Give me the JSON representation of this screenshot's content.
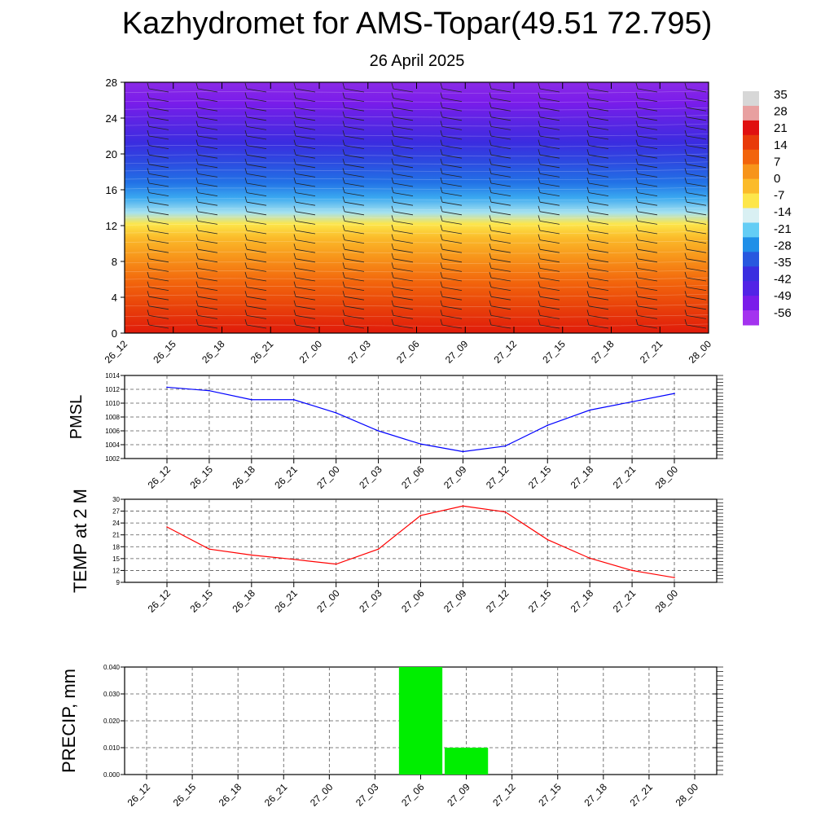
{
  "title": "Kazhydromet for AMS-Topar(49.51 72.795)",
  "subtitle": "26 April 2025",
  "chart_data": [
    {
      "type": "heatmap",
      "description_hidden": "",
      "x_ticks": [
        "26_12",
        "26_15",
        "26_18",
        "26_21",
        "27_00",
        "27_03",
        "27_06",
        "27_09",
        "27_12",
        "27_15",
        "27_18",
        "27_21",
        "28_00"
      ],
      "ylim": [
        0,
        28
      ],
      "y_ticks": [
        0,
        4,
        8,
        12,
        16,
        20,
        24,
        28
      ],
      "colorbar_labels": [
        "35",
        "28",
        "21",
        "14",
        "7",
        "0",
        "-7",
        "-14",
        "-21",
        "-28",
        "-35",
        "-42",
        "-49",
        "-56"
      ],
      "colormap": [
        "#d7d7d7",
        "#e8a0a0",
        "#e01010",
        "#e83a0a",
        "#f2640c",
        "#f7941a",
        "#fbbb2a",
        "#fde64a",
        "#d9f0f3",
        "#64cdf5",
        "#1f8fe8",
        "#2858df",
        "#3a2ee0",
        "#5223e6",
        "#7a1cea",
        "#a433ef"
      ]
    },
    {
      "type": "line",
      "ylabel": "PMSL",
      "categories": [
        "26_12",
        "26_15",
        "26_18",
        "26_21",
        "27_00",
        "27_03",
        "27_06",
        "27_09",
        "27_12",
        "27_15",
        "27_18",
        "27_21",
        "28_00"
      ],
      "values": [
        1012.3,
        1011.8,
        1010.5,
        1010.5,
        1008.6,
        1006.0,
        1004.1,
        1003.0,
        1003.8,
        1006.8,
        1009.0,
        1010.2,
        1011.4
      ],
      "ylim": [
        1002,
        1014
      ],
      "y_ticks": [
        "1002",
        "1004",
        "1006",
        "1008",
        "1010",
        "1012",
        "1014"
      ],
      "color": "#0000ff",
      "grid": true
    },
    {
      "type": "line",
      "ylabel": "TEMP at 2 M",
      "categories": [
        "26_12",
        "26_15",
        "26_18",
        "26_21",
        "27_00",
        "27_03",
        "27_06",
        "27_09",
        "27_12",
        "27_15",
        "27_18",
        "27_21",
        "28_00"
      ],
      "values": [
        23.0,
        17.4,
        15.9,
        14.8,
        13.6,
        17.4,
        25.9,
        28.3,
        26.8,
        19.8,
        15.1,
        12.0,
        10.2
      ],
      "ylim": [
        9,
        30
      ],
      "y_ticks": [
        "9",
        "12",
        "15",
        "18",
        "21",
        "24",
        "27",
        "30"
      ],
      "color": "#ff0000",
      "grid": true
    },
    {
      "type": "bar",
      "ylabel": "PRECIP, mm",
      "categories": [
        "26_12",
        "26_15",
        "26_18",
        "26_21",
        "27_00",
        "27_03",
        "27_06",
        "27_09",
        "27_12",
        "27_15",
        "27_18",
        "27_21",
        "28_00"
      ],
      "values": [
        0,
        0,
        0,
        0,
        0,
        0,
        0.04,
        0.01,
        0,
        0,
        0,
        0,
        0
      ],
      "ylim": [
        0,
        0.04
      ],
      "y_ticks": [
        "0.000",
        "0.010",
        "0.020",
        "0.030",
        "0.040"
      ],
      "color": "#00ee00",
      "grid": true
    }
  ]
}
